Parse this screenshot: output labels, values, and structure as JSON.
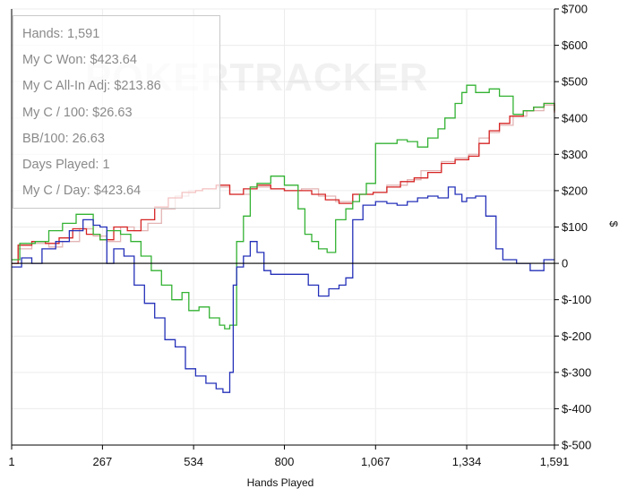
{
  "chart_data": {
    "type": "line",
    "watermark": "POKERTRACKER",
    "xlabel": "Hands Played",
    "ylabel": "$",
    "xlim": [
      1,
      1591
    ],
    "ylim": [
      -500,
      700
    ],
    "x_ticks": [
      1,
      267,
      534,
      800,
      1067,
      1334,
      1591
    ],
    "x_tick_labels": [
      "1",
      "267",
      "534",
      "800",
      "1,067",
      "1,334",
      "1,591"
    ],
    "y_ticks": [
      -500,
      -400,
      -300,
      -200,
      -100,
      0,
      100,
      200,
      300,
      400,
      500,
      600,
      700
    ],
    "y_tick_labels": [
      "$-500",
      "$-400",
      "$-300",
      "$-200",
      "$-100",
      "0",
      "$100",
      "$200",
      "$300",
      "$400",
      "$500",
      "$600",
      "$700"
    ],
    "grid": true,
    "series": [
      {
        "color": "#e3b4b4",
        "points": [
          [
            1,
            0
          ],
          [
            20,
            40
          ],
          [
            60,
            55
          ],
          [
            110,
            45
          ],
          [
            150,
            60
          ],
          [
            200,
            95
          ],
          [
            240,
            75
          ],
          [
            280,
            60
          ],
          [
            320,
            100
          ],
          [
            360,
            90
          ],
          [
            400,
            110
          ],
          [
            440,
            150
          ],
          [
            480,
            185
          ],
          [
            520,
            200
          ],
          [
            560,
            205
          ],
          [
            600,
            210
          ],
          [
            640,
            190
          ],
          [
            700,
            210
          ],
          [
            760,
            205
          ],
          [
            800,
            200
          ],
          [
            850,
            205
          ],
          [
            900,
            185
          ],
          [
            950,
            170
          ],
          [
            1000,
            190
          ],
          [
            1060,
            195
          ],
          [
            1100,
            215
          ],
          [
            1160,
            230
          ],
          [
            1200,
            255
          ],
          [
            1260,
            280
          ],
          [
            1300,
            290
          ],
          [
            1340,
            300
          ],
          [
            1370,
            345
          ],
          [
            1400,
            360
          ],
          [
            1430,
            380
          ],
          [
            1470,
            405
          ],
          [
            1510,
            420
          ],
          [
            1560,
            435
          ],
          [
            1591,
            420
          ]
        ]
      },
      {
        "color": "#d62424",
        "points": [
          [
            1,
            0
          ],
          [
            20,
            50
          ],
          [
            60,
            60
          ],
          [
            100,
            55
          ],
          [
            140,
            70
          ],
          [
            180,
            95
          ],
          [
            220,
            80
          ],
          [
            260,
            65
          ],
          [
            300,
            100
          ],
          [
            340,
            90
          ],
          [
            380,
            120
          ],
          [
            420,
            155
          ],
          [
            460,
            180
          ],
          [
            500,
            195
          ],
          [
            540,
            200
          ],
          [
            560,
            205
          ],
          [
            600,
            215
          ],
          [
            640,
            190
          ],
          [
            680,
            205
          ],
          [
            720,
            215
          ],
          [
            760,
            205
          ],
          [
            800,
            200
          ],
          [
            840,
            200
          ],
          [
            880,
            190
          ],
          [
            920,
            175
          ],
          [
            960,
            165
          ],
          [
            1000,
            190
          ],
          [
            1060,
            195
          ],
          [
            1100,
            210
          ],
          [
            1140,
            225
          ],
          [
            1180,
            235
          ],
          [
            1220,
            250
          ],
          [
            1260,
            275
          ],
          [
            1300,
            285
          ],
          [
            1340,
            295
          ],
          [
            1370,
            330
          ],
          [
            1400,
            365
          ],
          [
            1430,
            385
          ],
          [
            1460,
            405
          ],
          [
            1500,
            420
          ],
          [
            1530,
            430
          ],
          [
            1560,
            440
          ],
          [
            1591,
            415
          ]
        ]
      },
      {
        "color": "#33b233",
        "points": [
          [
            1,
            10
          ],
          [
            25,
            55
          ],
          [
            70,
            60
          ],
          [
            110,
            90
          ],
          [
            150,
            110
          ],
          [
            190,
            135
          ],
          [
            215,
            135
          ],
          [
            240,
            80
          ],
          [
            260,
            65
          ],
          [
            280,
            90
          ],
          [
            320,
            80
          ],
          [
            350,
            60
          ],
          [
            380,
            20
          ],
          [
            410,
            -20
          ],
          [
            440,
            -60
          ],
          [
            470,
            -100
          ],
          [
            500,
            -80
          ],
          [
            520,
            -130
          ],
          [
            550,
            -120
          ],
          [
            580,
            -150
          ],
          [
            610,
            -170
          ],
          [
            625,
            -180
          ],
          [
            640,
            -170
          ],
          [
            660,
            60
          ],
          [
            680,
            130
          ],
          [
            700,
            210
          ],
          [
            720,
            220
          ],
          [
            760,
            240
          ],
          [
            800,
            215
          ],
          [
            840,
            150
          ],
          [
            860,
            80
          ],
          [
            880,
            60
          ],
          [
            900,
            40
          ],
          [
            925,
            30
          ],
          [
            950,
            120
          ],
          [
            980,
            150
          ],
          [
            1000,
            170
          ],
          [
            1020,
            190
          ],
          [
            1040,
            220
          ],
          [
            1067,
            330
          ],
          [
            1100,
            330
          ],
          [
            1130,
            340
          ],
          [
            1160,
            335
          ],
          [
            1190,
            320
          ],
          [
            1220,
            345
          ],
          [
            1250,
            370
          ],
          [
            1270,
            400
          ],
          [
            1300,
            440
          ],
          [
            1320,
            470
          ],
          [
            1334,
            490
          ],
          [
            1360,
            470
          ],
          [
            1400,
            480
          ],
          [
            1430,
            460
          ],
          [
            1470,
            410
          ],
          [
            1500,
            420
          ],
          [
            1530,
            430
          ],
          [
            1560,
            440
          ],
          [
            1591,
            420
          ]
        ]
      },
      {
        "color": "#2430b8",
        "points": [
          [
            1,
            -10
          ],
          [
            30,
            15
          ],
          [
            60,
            0
          ],
          [
            90,
            40
          ],
          [
            130,
            60
          ],
          [
            170,
            90
          ],
          [
            210,
            120
          ],
          [
            240,
            105
          ],
          [
            260,
            100
          ],
          [
            280,
            0
          ],
          [
            300,
            40
          ],
          [
            330,
            20
          ],
          [
            360,
            -60
          ],
          [
            390,
            -110
          ],
          [
            420,
            -150
          ],
          [
            450,
            -210
          ],
          [
            480,
            -230
          ],
          [
            510,
            -290
          ],
          [
            540,
            -310
          ],
          [
            570,
            -330
          ],
          [
            600,
            -345
          ],
          [
            620,
            -355
          ],
          [
            640,
            -300
          ],
          [
            650,
            -60
          ],
          [
            660,
            -10
          ],
          [
            680,
            20
          ],
          [
            700,
            60
          ],
          [
            720,
            30
          ],
          [
            740,
            -20
          ],
          [
            760,
            -30
          ],
          [
            800,
            -30
          ],
          [
            840,
            -30
          ],
          [
            870,
            -60
          ],
          [
            900,
            -90
          ],
          [
            930,
            -70
          ],
          [
            960,
            -60
          ],
          [
            980,
            -40
          ],
          [
            1000,
            120
          ],
          [
            1030,
            160
          ],
          [
            1067,
            170
          ],
          [
            1100,
            165
          ],
          [
            1130,
            160
          ],
          [
            1160,
            170
          ],
          [
            1190,
            180
          ],
          [
            1220,
            185
          ],
          [
            1250,
            180
          ],
          [
            1280,
            210
          ],
          [
            1300,
            190
          ],
          [
            1320,
            170
          ],
          [
            1334,
            180
          ],
          [
            1360,
            185
          ],
          [
            1390,
            130
          ],
          [
            1420,
            40
          ],
          [
            1440,
            10
          ],
          [
            1480,
            0
          ],
          [
            1520,
            -20
          ],
          [
            1560,
            10
          ],
          [
            1591,
            10
          ]
        ]
      }
    ]
  },
  "stats": [
    "Hands: 1,591",
    "My C Won: $423.64",
    "My C All-In Adj: $213.86",
    "My C / 100: $26.63",
    "BB/100: 26.63",
    "Days Played: 1",
    "My C / Day: $423.64"
  ]
}
